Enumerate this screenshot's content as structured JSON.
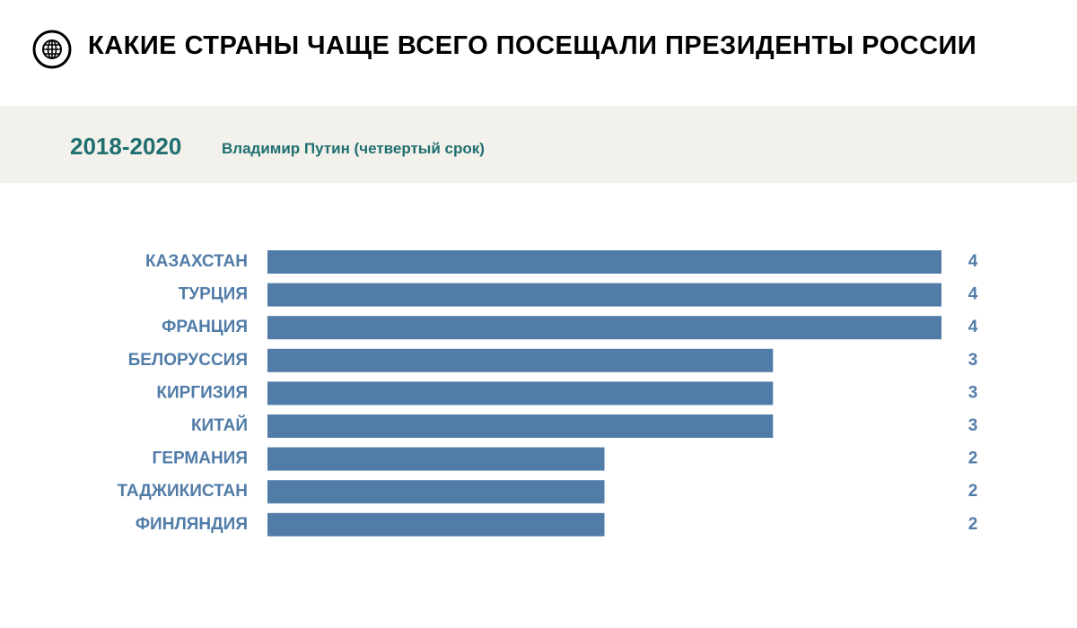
{
  "header": {
    "title": "КАКИЕ СТРАНЫ ЧАЩЕ ВСЕГО ПОСЕЩАЛИ ПРЕЗИДЕНТЫ РОССИИ",
    "icon": "globe-icon"
  },
  "period": {
    "years": "2018-2020",
    "description": "Владимир Путин (четвертый срок)"
  },
  "colors": {
    "bar": "#517ca8",
    "label": "#517ca8",
    "period_text": "#1f6f6f",
    "band": "#f2f1ec"
  },
  "chart_data": {
    "type": "bar",
    "orientation": "horizontal",
    "categories": [
      "КАЗАХСТАН",
      "ТУРЦИЯ",
      "ФРАНЦИЯ",
      "БЕЛОРУССИЯ",
      "КИРГИЗИЯ",
      "КИТАЙ",
      "ГЕРМАНИЯ",
      "ТАДЖИКИСТАН",
      "ФИНЛЯНДИЯ"
    ],
    "values": [
      4,
      4,
      4,
      3,
      3,
      3,
      2,
      2,
      2
    ],
    "xlim": [
      0,
      4
    ],
    "grid": false,
    "legend": "none",
    "data_labels": true
  }
}
